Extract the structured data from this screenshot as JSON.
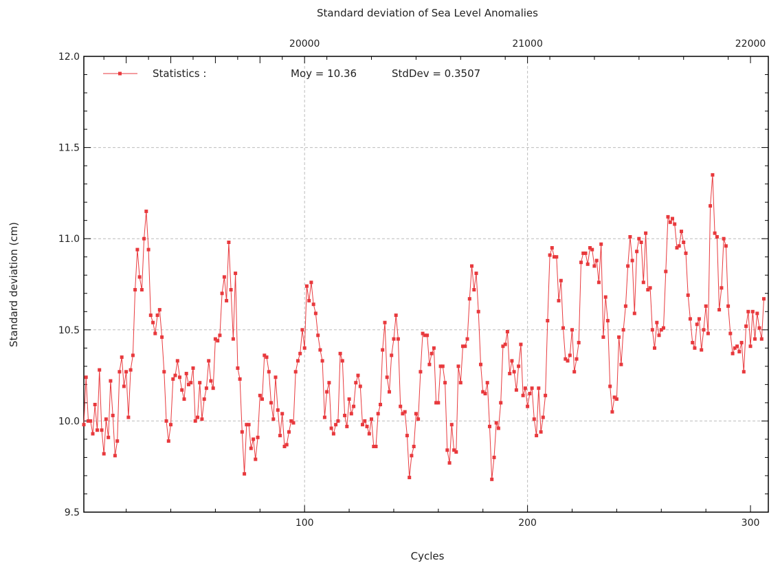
{
  "chart_data": {
    "type": "line",
    "title": "Standard deviation of Sea Level Anomalies",
    "xlabel": "Cycles",
    "ylabel": "Standard deviation (cm)",
    "xlim": [
      1,
      308
    ],
    "ylim": [
      9.5,
      12.0
    ],
    "x_ticks": [
      100,
      200,
      300
    ],
    "y_ticks": [
      "9.5",
      "10.0",
      "10.5",
      "11.0",
      "11.5",
      "12.0"
    ],
    "secondary_x_ticks": [
      "20000",
      "21000",
      "22000"
    ],
    "grid": true,
    "legend": {
      "position": "top-left",
      "label": "Statistics :",
      "moy": "Moy = 10.36",
      "stddev": "StdDev = 0.3507"
    },
    "color": "#e8393d",
    "series": [
      {
        "x_start": 1,
        "x_step": 1,
        "values": [
          9.98,
          10.24,
          10.0,
          10.0,
          9.93,
          10.09,
          9.95,
          10.28,
          9.95,
          9.82,
          10.01,
          9.91,
          10.22,
          10.03,
          9.81,
          9.89,
          10.27,
          10.35,
          10.19,
          10.27,
          10.02,
          10.28,
          10.36,
          10.72,
          10.94,
          10.79,
          10.72,
          11.0,
          11.15,
          10.94,
          10.58,
          10.54,
          10.48,
          10.58,
          10.61,
          10.46,
          10.27,
          10.0,
          9.89,
          9.98,
          10.23,
          10.25,
          10.33,
          10.24,
          10.17,
          10.12,
          10.26,
          10.2,
          10.21,
          10.29,
          10.0,
          10.02,
          10.21,
          10.01,
          10.12,
          10.18,
          10.33,
          10.22,
          10.18,
          10.45,
          10.44,
          10.47,
          10.7,
          10.79,
          10.66,
          10.98,
          10.72,
          10.45,
          10.81,
          10.29,
          10.23,
          9.94,
          9.71,
          9.98,
          9.98,
          9.85,
          9.9,
          9.79,
          9.91,
          10.14,
          10.12,
          10.36,
          10.35,
          10.27,
          10.1,
          10.01,
          10.24,
          10.06,
          9.92,
          10.04,
          9.86,
          9.87,
          9.94,
          10.0,
          9.99,
          10.27,
          10.33,
          10.37,
          10.5,
          10.4,
          10.74,
          10.66,
          10.76,
          10.64,
          10.59,
          10.47,
          10.39,
          10.33,
          10.02,
          10.16,
          10.21,
          9.96,
          9.93,
          9.98,
          10.0,
          10.37,
          10.33,
          10.03,
          9.97,
          10.12,
          10.04,
          10.08,
          10.21,
          10.25,
          10.19,
          9.98,
          10.0,
          9.97,
          9.93,
          10.01,
          9.86,
          9.86,
          10.04,
          10.09,
          10.39,
          10.54,
          10.24,
          10.16,
          10.36,
          10.45,
          10.58,
          10.45,
          10.08,
          10.04,
          10.05,
          9.92,
          9.69,
          9.81,
          9.86,
          10.04,
          10.01,
          10.27,
          10.48,
          10.47,
          10.47,
          10.31,
          10.37,
          10.4,
          10.1,
          10.1,
          10.3,
          10.3,
          10.21,
          9.84,
          9.77,
          9.98,
          9.84,
          9.83,
          10.3,
          10.21,
          10.41,
          10.41,
          10.45,
          10.67,
          10.85,
          10.72,
          10.81,
          10.6,
          10.31,
          10.16,
          10.15,
          10.21,
          9.97,
          9.68,
          9.8,
          9.99,
          9.96,
          10.1,
          10.41,
          10.42,
          10.49,
          10.26,
          10.33,
          10.27,
          10.17,
          10.3,
          10.42,
          10.14,
          10.18,
          10.08,
          10.15,
          10.18,
          10.01,
          9.92,
          10.18,
          9.94,
          10.02,
          10.14,
          10.55,
          10.91,
          10.95,
          10.9,
          10.9,
          10.66,
          10.77,
          10.51,
          10.34,
          10.33,
          10.36,
          10.5,
          10.27,
          10.34,
          10.43,
          10.87,
          10.92,
          10.92,
          10.86,
          10.95,
          10.94,
          10.85,
          10.88,
          10.76,
          10.97,
          10.46,
          10.68,
          10.55,
          10.19,
          10.05,
          10.13,
          10.12,
          10.46,
          10.31,
          10.5,
          10.63,
          10.85,
          11.01,
          10.88,
          10.59,
          10.93,
          11.0,
          10.98,
          10.76,
          11.03,
          10.72,
          10.73,
          10.5,
          10.4,
          10.54,
          10.47,
          10.5,
          10.51,
          10.82,
          11.12,
          11.09,
          11.11,
          11.08,
          10.95,
          10.96,
          11.04,
          10.98,
          10.92,
          10.69,
          10.56,
          10.43,
          10.4,
          10.53,
          10.56,
          10.39,
          10.5,
          10.63,
          10.48,
          11.18,
          11.35,
          11.03,
          11.01,
          10.61,
          10.73,
          11.0,
          10.96,
          10.63,
          10.48,
          10.37,
          10.4,
          10.41,
          10.38,
          10.43,
          10.27,
          10.52,
          10.6,
          10.41,
          10.6,
          10.45,
          10.59,
          10.51,
          10.45,
          10.67
        ]
      }
    ]
  }
}
